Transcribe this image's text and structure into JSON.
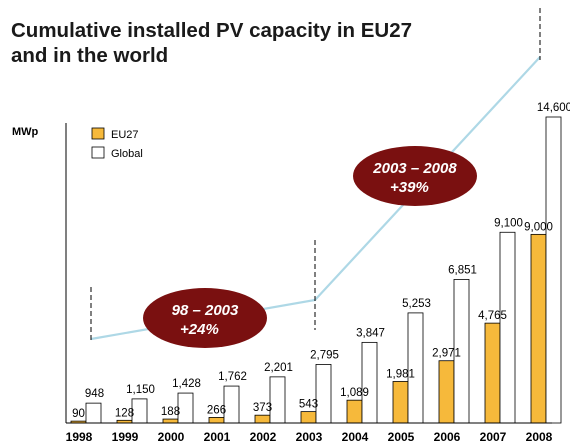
{
  "title_line1": "Cumulative installed PV capacity in EU27",
  "title_line2": "and in the world",
  "chart_data": {
    "type": "bar",
    "ylabel": "MWp",
    "categories": [
      "1998",
      "1999",
      "2000",
      "2001",
      "2002",
      "2003",
      "2004",
      "2005",
      "2006",
      "2007",
      "2008"
    ],
    "series": [
      {
        "name": "EU27",
        "color": "#f6b93b",
        "values": [
          90,
          128,
          188,
          266,
          373,
          543,
          1089,
          1981,
          2971,
          4765,
          9000
        ],
        "labels": [
          "90",
          "128",
          "188",
          "266",
          "373",
          "543",
          "1,089",
          "1,981",
          "2,971",
          "4,765",
          "9,000"
        ]
      },
      {
        "name": "Global",
        "color": "#ffffff",
        "values": [
          948,
          1150,
          1428,
          1762,
          2201,
          2795,
          3847,
          5253,
          6851,
          9100,
          14600
        ],
        "labels": [
          "948",
          "1,150",
          "1,428",
          "1,762",
          "2,201",
          "2,795",
          "3,847",
          "5,253",
          "6,851",
          "9,100",
          "14,600"
        ]
      }
    ],
    "ylim": [
      0,
      14600
    ],
    "grid": false,
    "legend": "top-left",
    "trend_color": "#aed8e6",
    "annotations": [
      {
        "line1": "98 – 2003",
        "line2": "+24%",
        "color": "#7a1010"
      },
      {
        "line1": "2003 – 2008",
        "line2": "+39%",
        "color": "#7a1010"
      }
    ]
  }
}
